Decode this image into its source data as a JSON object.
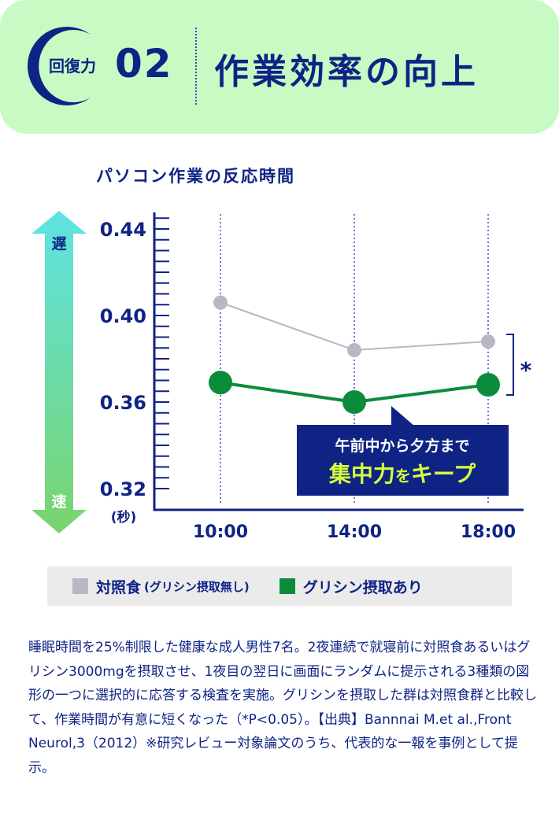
{
  "header": {
    "badge": "回復力",
    "number": "02",
    "title": "作業効率の向上"
  },
  "colors": {
    "navy": "#0f2385",
    "control": "#b6b8c4",
    "glycine": "#0a8c3b",
    "header_bg": "#c8fac4",
    "callout_highlight": "#d6ff3c"
  },
  "chart_data": {
    "type": "line",
    "title": "パソコン作業の反応時間",
    "ylabel": "(秒)",
    "ylim": [
      0.31,
      0.448
    ],
    "yticks": [
      "0.44",
      "0.40",
      "0.36",
      "0.32"
    ],
    "categories": [
      "10:00",
      "14:00",
      "18:00"
    ],
    "series": [
      {
        "name": "対照食",
        "note": "(グリシン摂取無し)",
        "values": [
          0.406,
          0.384,
          0.388
        ]
      },
      {
        "name": "グリシン摂取あり",
        "values": [
          0.369,
          0.36,
          0.368
        ]
      }
    ],
    "significance": "*",
    "arrow_top": "遅",
    "arrow_bottom": "速",
    "callout": {
      "line1": "午前中から夕方まで",
      "line2a": "集中力",
      "line2b": "を",
      "line2c": "キープ"
    },
    "grid": "vertical dotted"
  },
  "description": "睡眠時間を25%制限した健康な成人男性7名。2夜連続で就寝前に対照食あるいはグリシン3000mgを摂取させ、1夜目の翌日に画面にランダムに提示される3種類の図形の一つに選択的に応答する検査を実施。グリシンを摂取した群は対照食群と比較して、作業時間が有意に短くなった（*P<0.05）。【出典】Bannnai M.et al.,Front Neurol,3（2012）※研究レビュー対象論文のうち、代表的な一報を事例として提示。"
}
